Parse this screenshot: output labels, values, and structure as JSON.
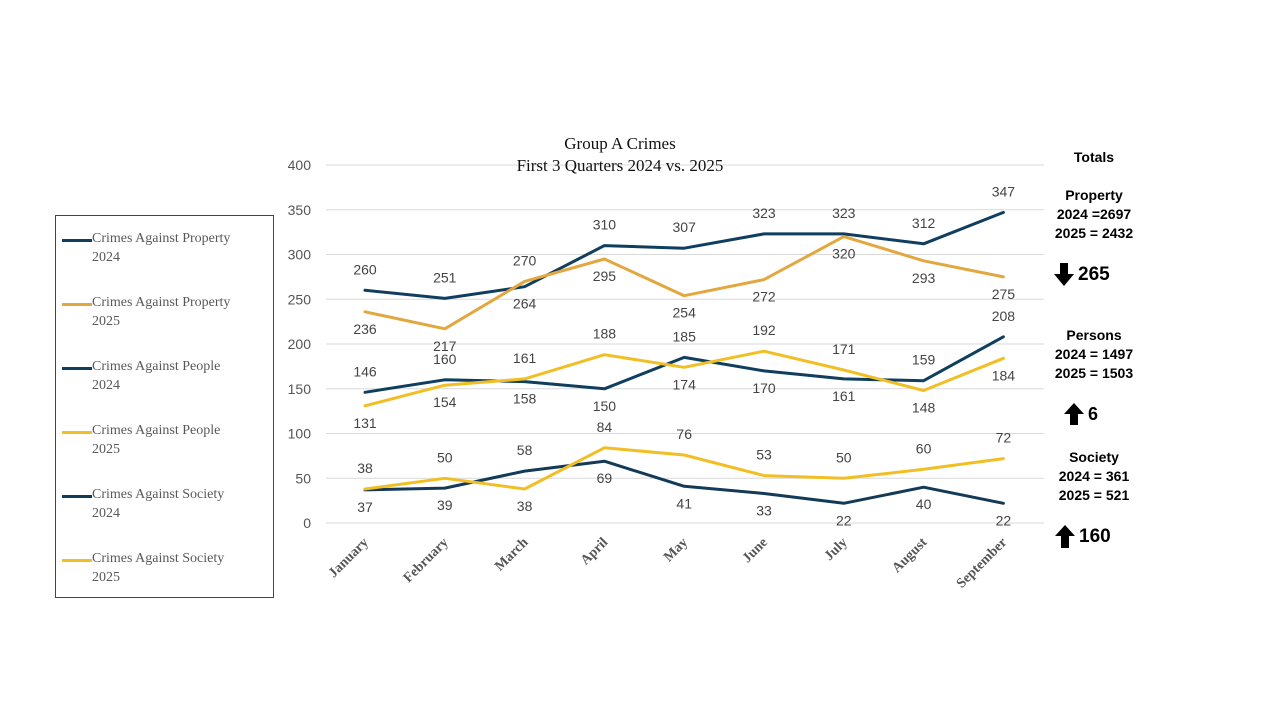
{
  "chart_data": {
    "type": "line",
    "title": "Group A Crimes",
    "subtitle": "First 3 Quarters 2024 vs. 2025",
    "categories": [
      "January",
      "February",
      "March",
      "April",
      "May",
      "June",
      "July",
      "August",
      "September"
    ],
    "ylim": [
      0,
      400
    ],
    "yticks": [
      0,
      50,
      100,
      150,
      200,
      250,
      300,
      350,
      400
    ],
    "grid": true,
    "series": [
      {
        "name": "Crimes Against Property 2024",
        "color": "#0f3e5f",
        "values": [
          260,
          251,
          264,
          310,
          307,
          323,
          323,
          312,
          347
        ]
      },
      {
        "name": "Crimes Against Property 2025",
        "color": "#e3a73f",
        "values": [
          236,
          217,
          270,
          295,
          254,
          272,
          320,
          293,
          275
        ]
      },
      {
        "name": "Crimes Against People 2024",
        "color": "#0f3e5f",
        "values": [
          146,
          160,
          158,
          150,
          185,
          170,
          161,
          159,
          208
        ]
      },
      {
        "name": "Crimes Against People 2025",
        "color": "#f1bf24",
        "values": [
          131,
          154,
          161,
          188,
          174,
          192,
          171,
          148,
          184
        ]
      },
      {
        "name": "Crimes Against Society 2024",
        "color": "#133a57",
        "values": [
          37,
          39,
          58,
          69,
          41,
          33,
          22,
          40,
          22
        ]
      },
      {
        "name": "Crimes Against Society 2025",
        "color": "#f1bf24",
        "values": [
          38,
          50,
          38,
          84,
          76,
          53,
          50,
          60,
          72
        ]
      }
    ]
  },
  "legend": [
    {
      "label": "Crimes Against Property\n2024",
      "color": "#0f3e5f"
    },
    {
      "label": "Crimes Against Property\n2025",
      "color": "#e3a73f"
    },
    {
      "label": "Crimes Against People\n2024",
      "color": "#0f3e5f"
    },
    {
      "label": "Crimes Against People\n2025",
      "color": "#f1bf24"
    },
    {
      "label": "Crimes Against Society\n2024",
      "color": "#133a57"
    },
    {
      "label": "Crimes Against Society\n2025",
      "color": "#f1bf24"
    }
  ],
  "totals": {
    "heading": "Totals",
    "property": {
      "title": "Property",
      "line2024": "2024 =2697",
      "line2025": "2025 = 2432",
      "change": "265",
      "direction": "down"
    },
    "persons": {
      "title": "Persons",
      "line2024": "2024 = 1497",
      "line2025": "2025 = 1503",
      "change": "6",
      "direction": "up"
    },
    "society": {
      "title": "Society",
      "line2024": "2024 = 361",
      "line2025": "2025 = 521",
      "change": "160",
      "direction": "up"
    }
  }
}
